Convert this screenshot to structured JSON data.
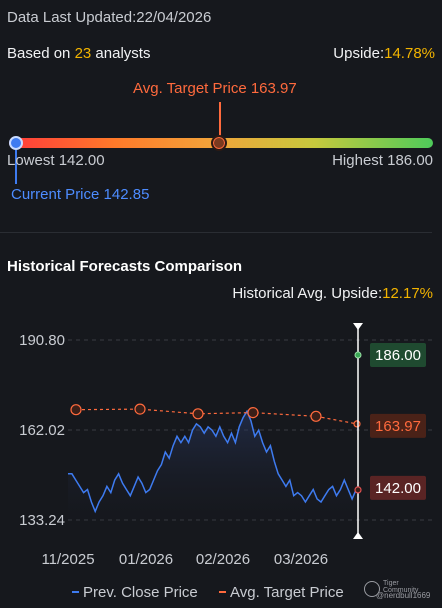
{
  "updated": {
    "label": "Data Last Updated:",
    "date": "22/04/2026"
  },
  "analysts": {
    "prefix": "Based on ",
    "count": "23",
    "suffix": " analysts"
  },
  "upside": {
    "label": "Upside:",
    "value": "14.78%"
  },
  "range": {
    "avg_target_label": "Avg. Target Price 163.97",
    "lowest_label": "Lowest 142.00",
    "highest_label": "Highest 186.00",
    "current_label": "Current Price 142.85",
    "lowest": 142.0,
    "highest": 186.0,
    "avg_target": 163.97,
    "current": 142.85
  },
  "historical": {
    "title": "Historical Forecasts Comparison",
    "upside_label": "Historical Avg. Upside:",
    "upside_value": "12.17%"
  },
  "legend": {
    "prev_close": "Prev. Close Price",
    "avg_target": "Avg. Target Price"
  },
  "watermark": {
    "brand": "Tiger Community",
    "user": "@nerdbull1669"
  },
  "colors": {
    "accent_orange": "#ff6a3d",
    "accent_blue": "#3e7bf0",
    "highlight": "#f3b400",
    "high_green": "#3aa655",
    "low_red": "#7a2a2a"
  },
  "chart_data": {
    "type": "line",
    "x_ticks": [
      "11/2025",
      "01/2026",
      "02/2026",
      "03/2026"
    ],
    "y_ticks": [
      "190.80",
      "162.02",
      "133.24"
    ],
    "ylim": [
      133.24,
      190.8
    ],
    "series": [
      {
        "name": "Prev. Close Price",
        "values": [
          148,
          148,
          146,
          144,
          142,
          143,
          139,
          136,
          139,
          141,
          144,
          142,
          146,
          148,
          145,
          143,
          141,
          144,
          147,
          145,
          142,
          143,
          146,
          149,
          151,
          155,
          153,
          157,
          160,
          158,
          160,
          158,
          162,
          164,
          163,
          161,
          163,
          162,
          160,
          163,
          160,
          158,
          161,
          158,
          163,
          166,
          168,
          165,
          160,
          162,
          158,
          155,
          157,
          152,
          148,
          146,
          144,
          146,
          141,
          142,
          141,
          139,
          141,
          143,
          140,
          139,
          141,
          143,
          144,
          141,
          143,
          146,
          143,
          140,
          142.85
        ]
      },
      {
        "name": "Avg. Target Price",
        "values": [
          168.5,
          168.7,
          167.2,
          167.6,
          166.4,
          163.97
        ]
      }
    ],
    "end_labels": {
      "high": "186.00",
      "avg": "163.97",
      "low": "142.00"
    }
  }
}
